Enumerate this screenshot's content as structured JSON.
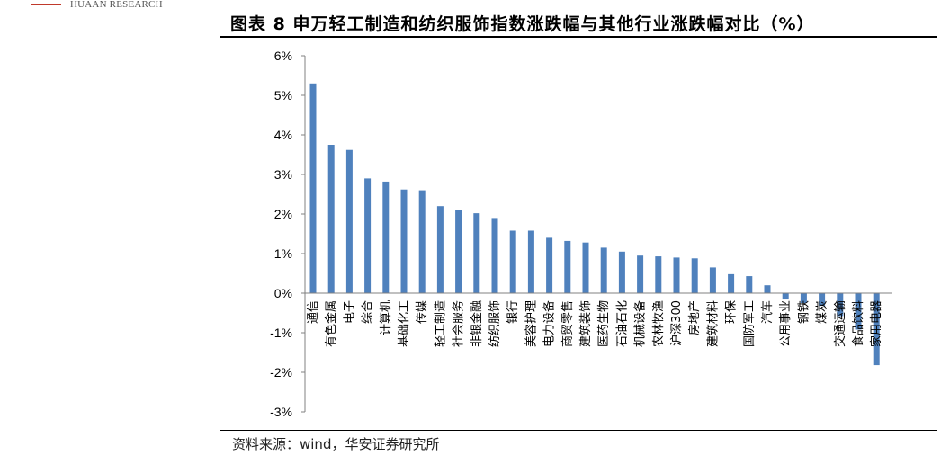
{
  "header": {
    "brand": "HUAAN RESEARCH",
    "title": "图表 8 申万轻工制造和纺织服饰指数涨跌幅与其他行业涨跌幅对比（%）"
  },
  "footer": {
    "source": "资料来源：wind，华安证券研究所"
  },
  "colors": {
    "bar": "#4f81bd",
    "brand_rule": "#c0392b"
  },
  "chart_data": {
    "type": "bar",
    "title": "",
    "xlabel": "",
    "ylabel": "",
    "ylim": [
      -3,
      6
    ],
    "yticks": [
      "6%",
      "5%",
      "4%",
      "3%",
      "2%",
      "1%",
      "0%",
      "-1%",
      "-2%",
      "-3%"
    ],
    "grid": false,
    "categories": [
      "通信",
      "有色金属",
      "电子",
      "综合",
      "计算机",
      "基础化工",
      "传媒",
      "轻工制造",
      "社会服务",
      "非银金融",
      "纺织服饰",
      "银行",
      "美容护理",
      "电力设备",
      "商贸零售",
      "建筑装饰",
      "医药生物",
      "石油石化",
      "机械设备",
      "农林牧渔",
      "沪深300",
      "房地产",
      "建筑材料",
      "环保",
      "国防军工",
      "汽车",
      "公用事业",
      "钢铁",
      "煤炭",
      "交通运输",
      "食品饮料",
      "家用电器"
    ],
    "values": [
      5.3,
      3.75,
      3.62,
      2.9,
      2.82,
      2.62,
      2.6,
      2.2,
      2.1,
      2.02,
      1.9,
      1.58,
      1.58,
      1.4,
      1.32,
      1.28,
      1.15,
      1.05,
      0.95,
      0.93,
      0.9,
      0.88,
      0.65,
      0.48,
      0.43,
      0.2,
      -0.16,
      -0.25,
      -0.32,
      -0.58,
      -0.92,
      -1.82
    ]
  }
}
